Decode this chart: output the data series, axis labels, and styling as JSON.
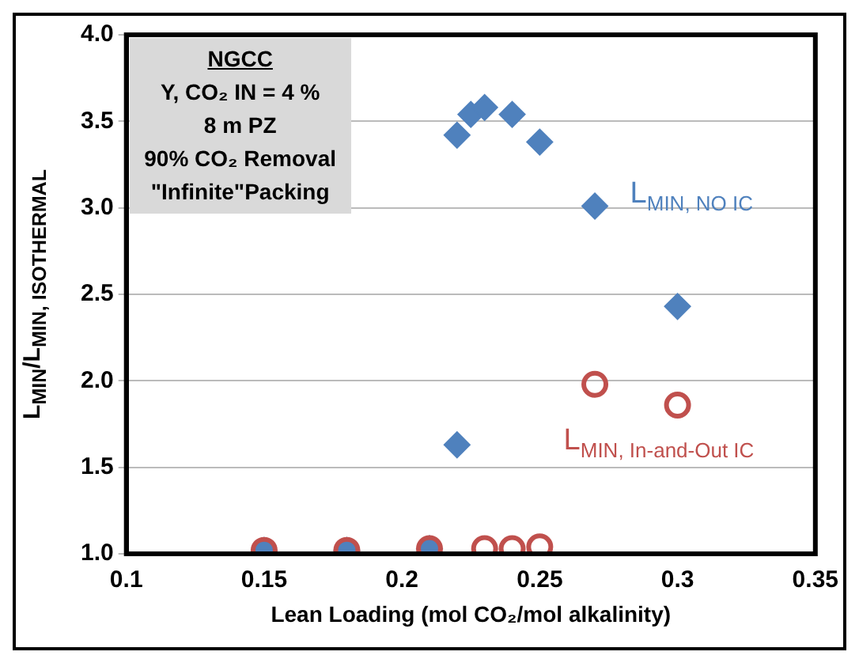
{
  "chart_data": {
    "type": "scatter",
    "xlabel": "Lean Loading (mol CO₂/mol alkalinity)",
    "ylabel": "L$_{MIN}$/L$_{MIN, ISOTHERMAL}$",
    "annotations": [
      "NGCC",
      "Y, CO₂ IN = 4 %",
      "8 m PZ",
      "90% CO₂ Removal",
      "\"Infinite\"Packing"
    ],
    "series": [
      {
        "name": "L$_{MIN, NO IC}$",
        "color": "#4f81bd",
        "marker": "diamond",
        "x": [
          0.15,
          0.18,
          0.21,
          0.22,
          0.22,
          0.225,
          0.23,
          0.24,
          0.25,
          0.27,
          0.3
        ],
        "values": [
          1.02,
          1.02,
          1.03,
          1.63,
          3.42,
          3.54,
          3.58,
          3.54,
          3.38,
          3.01,
          2.43
        ]
      },
      {
        "name": "L$_{MIN, In-and-Out IC}$",
        "color": "#c0504d",
        "marker": "circle",
        "x": [
          0.15,
          0.18,
          0.21,
          0.23,
          0.24,
          0.25,
          0.27,
          0.3
        ],
        "values": [
          1.02,
          1.02,
          1.03,
          1.03,
          1.03,
          1.04,
          1.98,
          1.86
        ]
      }
    ],
    "xlim": [
      0.1,
      0.35
    ],
    "xticks": [
      0.1,
      0.15,
      0.2,
      0.25,
      0.3,
      0.35
    ],
    "ylim": [
      1,
      4
    ],
    "yticks": [
      {
        "value": 1,
        "label": "1.0"
      },
      {
        "value": 1.5,
        "label": "1.5"
      },
      {
        "value": 2,
        "label": "2.0"
      },
      {
        "value": 2.5,
        "label": "2.5"
      },
      {
        "value": 3,
        "label": "3.0"
      },
      {
        "value": 3.5,
        "label": "3.5"
      },
      {
        "value": 4,
        "label": "4.0"
      }
    ],
    "grid": "y",
    "legend": false
  }
}
